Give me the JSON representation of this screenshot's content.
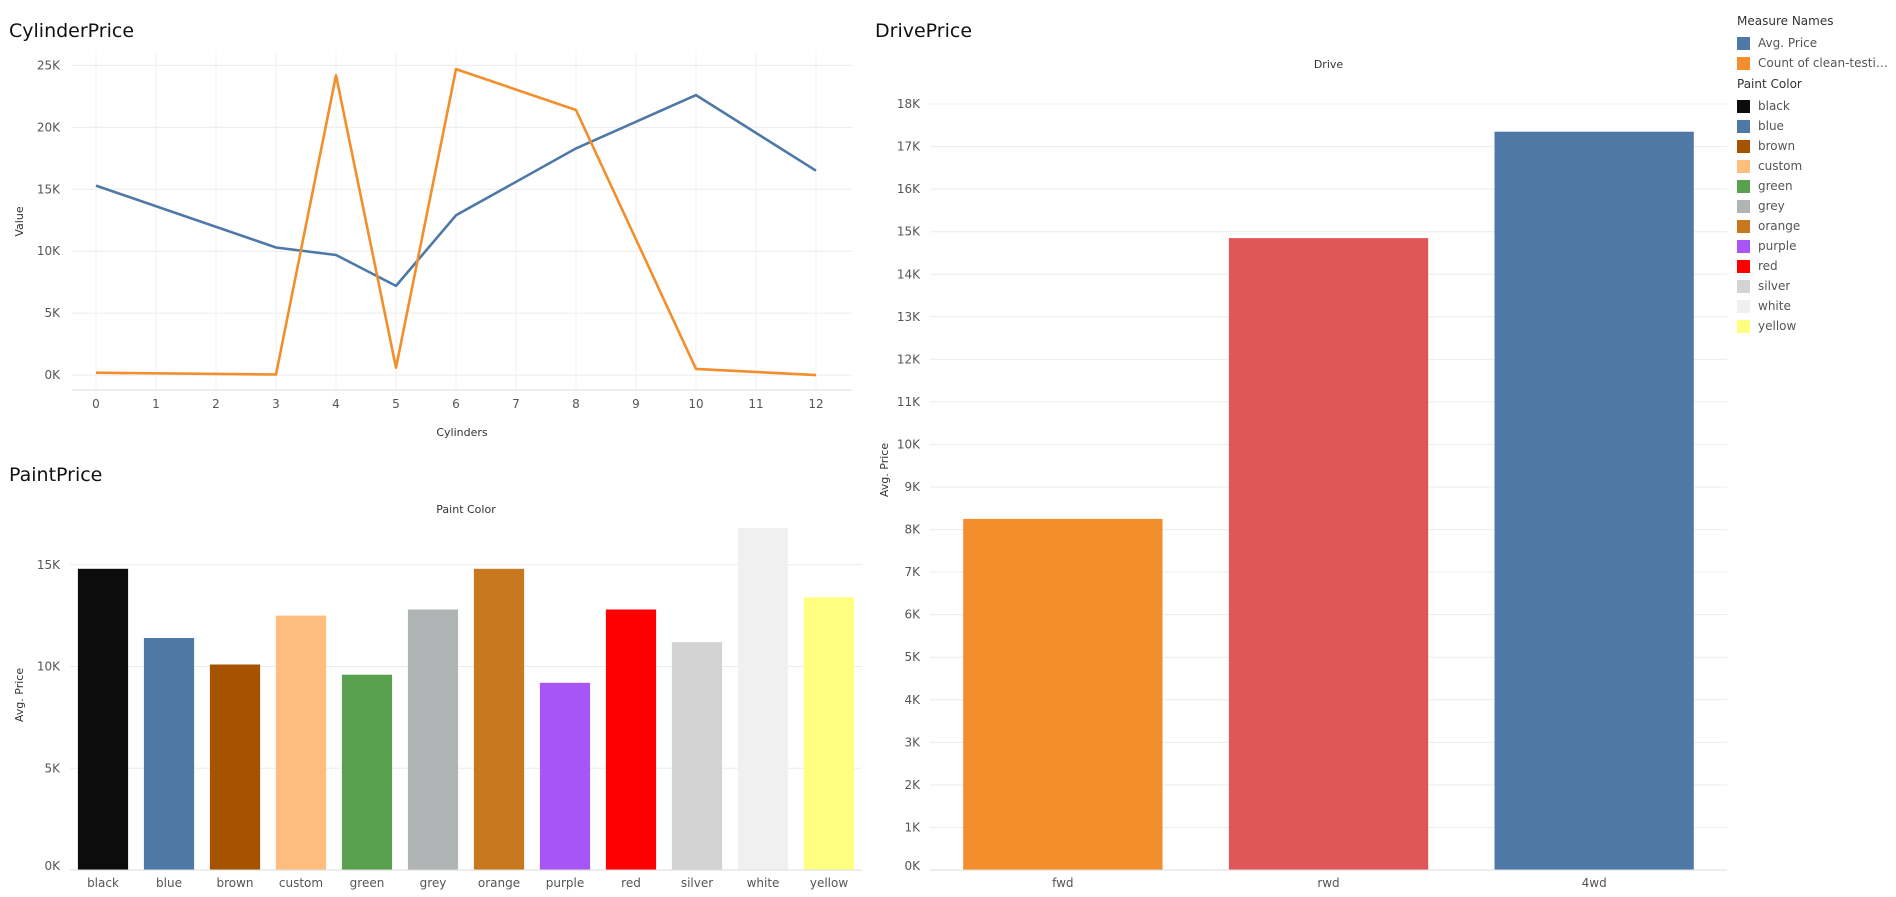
{
  "titles": {
    "cylinder": "CylinderPrice",
    "drive": "DrivePrice",
    "paint": "PaintPrice"
  },
  "legend": {
    "measure_title": "Measure Names",
    "measures": [
      {
        "label": "Avg. Price",
        "color": "#4E79A7"
      },
      {
        "label": "Count of clean-testin...",
        "color": "#F28E2B"
      }
    ],
    "paint_title": "Paint Color",
    "paints": [
      {
        "label": "black",
        "color": "#0C0C0C"
      },
      {
        "label": "blue",
        "color": "#4E79A7"
      },
      {
        "label": "brown",
        "color": "#A65300"
      },
      {
        "label": "custom",
        "color": "#FFBE7D"
      },
      {
        "label": "green",
        "color": "#59A14F"
      },
      {
        "label": "grey",
        "color": "#B0B4B4"
      },
      {
        "label": "orange",
        "color": "#C8781E"
      },
      {
        "label": "purple",
        "color": "#A855F7"
      },
      {
        "label": "red",
        "color": "#FF0000"
      },
      {
        "label": "silver",
        "color": "#D3D3D3"
      },
      {
        "label": "white",
        "color": "#F0F0F0"
      },
      {
        "label": "yellow",
        "color": "#FFFF7F"
      }
    ]
  },
  "chart_data": [
    {
      "id": "cylinder",
      "type": "line",
      "title": "CylinderPrice",
      "xlabel": "Cylinders",
      "ylabel": "Value",
      "x": [
        0,
        3,
        4,
        5,
        6,
        8,
        10,
        12
      ],
      "x_ticks": [
        0,
        1,
        2,
        3,
        4,
        5,
        6,
        7,
        8,
        9,
        10,
        11,
        12
      ],
      "xlim": [
        -0.4,
        12.6
      ],
      "y_ticks": [
        0,
        5000,
        10000,
        15000,
        20000,
        25000
      ],
      "y_tick_labels": [
        "0K",
        "5K",
        "10K",
        "15K",
        "20K",
        "25K"
      ],
      "ylim": [
        -1200,
        26000
      ],
      "series": [
        {
          "name": "Avg. Price",
          "color": "#4E79A7",
          "values": [
            15300,
            10300,
            9700,
            7200,
            12900,
            18300,
            22600,
            16500
          ]
        },
        {
          "name": "Count of clean-testin...",
          "color": "#F28E2B",
          "values": [
            200,
            50,
            24200,
            600,
            24700,
            21400,
            500,
            0
          ]
        }
      ],
      "grid": true
    },
    {
      "id": "drive",
      "type": "bar",
      "title": "DrivePrice",
      "header": "Drive",
      "ylabel": "Avg. Price",
      "categories": [
        "fwd",
        "rwd",
        "4wd"
      ],
      "values": [
        8250,
        14850,
        17350
      ],
      "colors": [
        "#F28E2B",
        "#E15759",
        "#4E79A7"
      ],
      "y_ticks": [
        0,
        1000,
        2000,
        3000,
        4000,
        5000,
        6000,
        7000,
        8000,
        9000,
        10000,
        11000,
        12000,
        13000,
        14000,
        15000,
        16000,
        17000,
        18000
      ],
      "y_tick_labels": [
        "0K",
        "1K",
        "2K",
        "3K",
        "4K",
        "5K",
        "6K",
        "7K",
        "8K",
        "9K",
        "10K",
        "11K",
        "12K",
        "13K",
        "14K",
        "15K",
        "16K",
        "17K",
        "18K"
      ],
      "ylim": [
        0,
        18800
      ],
      "grid": true
    },
    {
      "id": "paint",
      "type": "bar",
      "title": "PaintPrice",
      "header": "Paint Color",
      "ylabel": "Avg. Price",
      "categories": [
        "black",
        "blue",
        "brown",
        "custom",
        "green",
        "grey",
        "orange",
        "purple",
        "red",
        "silver",
        "white",
        "yellow"
      ],
      "values": [
        14800,
        11400,
        10100,
        12500,
        9600,
        12800,
        14800,
        9200,
        12800,
        11200,
        16800,
        13400
      ],
      "colors": [
        "#0C0C0C",
        "#4E79A7",
        "#A65300",
        "#FFBE7D",
        "#59A14F",
        "#B0B4B4",
        "#C8781E",
        "#A855F7",
        "#FF0000",
        "#D3D3D3",
        "#F0F0F0",
        "#FFFF7F"
      ],
      "y_ticks": [
        0,
        5000,
        10000,
        15000
      ],
      "y_tick_labels": [
        "0K",
        "5K",
        "10K",
        "15K"
      ],
      "ylim": [
        0,
        17200
      ],
      "grid": true
    }
  ]
}
